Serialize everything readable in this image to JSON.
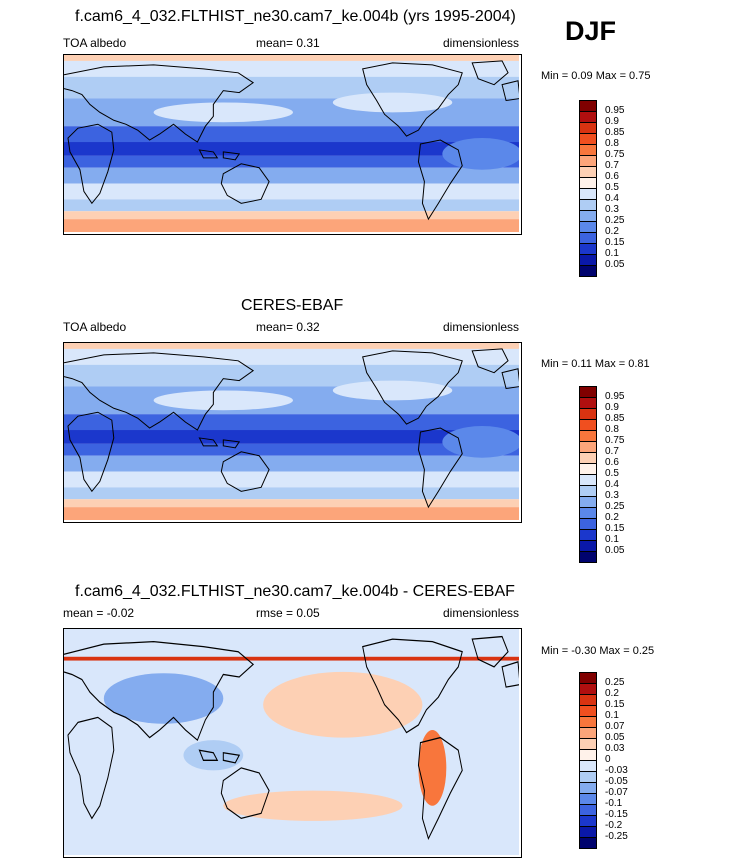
{
  "season": "DJF",
  "panels": [
    {
      "title": "f.cam6_4_032.FLTHIST_ne30.cam7_ke.004b (yrs 1995-2004)",
      "left_label": "TOA albedo",
      "center_label": "mean=   0.31",
      "right_label": "dimensionless",
      "minmax": "Min =   0.09 Max =   0.75",
      "type": "absolute"
    },
    {
      "title": "CERES-EBAF",
      "left_label": "TOA albedo",
      "center_label": "mean=   0.32",
      "right_label": "dimensionless",
      "minmax": "Min =   0.11 Max =   0.81",
      "type": "absolute"
    },
    {
      "title": "f.cam6_4_032.FLTHIST_ne30.cam7_ke.004b - CERES-EBAF",
      "left_label": "mean =  -0.02",
      "center_label": "rmse =   0.05",
      "right_label": "dimensionless",
      "minmax": "Min =  -0.30 Max =   0.25",
      "type": "difference"
    }
  ],
  "colorbars": {
    "absolute": {
      "labels": [
        "0.95",
        "0.9",
        "0.85",
        "0.8",
        "0.75",
        "0.7",
        "0.6",
        "0.5",
        "0.4",
        "0.3",
        "0.25",
        "0.2",
        "0.15",
        "0.1",
        "0.05"
      ],
      "colors": [
        "#800000",
        "#b00f0f",
        "#d93311",
        "#f04f1f",
        "#f8763c",
        "#fca57a",
        "#fdd0b4",
        "#fff2ea",
        "#d9e7fb",
        "#afcdf4",
        "#84acef",
        "#5b88ea",
        "#3c63e0",
        "#1b37cc",
        "#0a18a8",
        "#00036e"
      ]
    },
    "difference": {
      "labels": [
        "0.25",
        "0.2",
        "0.15",
        "0.1",
        "0.07",
        "0.05",
        "0.03",
        "0",
        "-0.03",
        "-0.05",
        "-0.07",
        "-0.1",
        "-0.15",
        "-0.2",
        "-0.25"
      ],
      "colors": [
        "#800000",
        "#b00f0f",
        "#d93311",
        "#f04f1f",
        "#f8763c",
        "#fca57a",
        "#fdd0b4",
        "#fff2ea",
        "#d9e7fb",
        "#afcdf4",
        "#84acef",
        "#5b88ea",
        "#3c63e0",
        "#1b37cc",
        "#0a18a8",
        "#00036e"
      ]
    }
  }
}
